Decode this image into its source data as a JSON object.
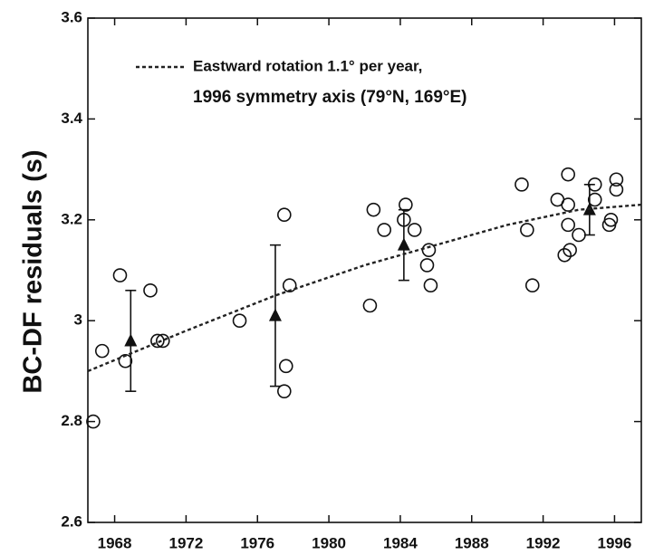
{
  "chart_data": {
    "type": "scatter",
    "y_label": "BC-DF residuals (s)",
    "annotation": "1996 symmetry axis (79°N, 169°E)",
    "xlim": [
      1966.5,
      1997.5
    ],
    "ylim": [
      2.6,
      3.6
    ],
    "xticks": [
      1968,
      1972,
      1976,
      1980,
      1984,
      1988,
      1992,
      1996
    ],
    "yticks": [
      2.6,
      2.8,
      3,
      3.2,
      3.4,
      3.6
    ],
    "series": [
      {
        "kind": "points",
        "marker": "circle",
        "color": "#111111",
        "x": [
          1966.8,
          1967.3,
          1968.3,
          1968.6,
          1970.0,
          1970.4,
          1970.7,
          1975.0,
          1977.5,
          1977.6,
          1977.5,
          1977.8,
          1982.3,
          1982.5,
          1983.1,
          1984.3,
          1984.2,
          1984.8,
          1985.6,
          1985.5,
          1985.7,
          1990.8,
          1991.1,
          1991.4,
          1992.8,
          1993.4,
          1993.4,
          1993.2,
          1993.5,
          1993.4,
          1994.0,
          1994.9,
          1994.9,
          1995.8,
          1995.7,
          1996.1,
          1996.1
        ],
        "values": [
          2.8,
          2.94,
          3.09,
          2.92,
          3.06,
          2.96,
          2.96,
          3.0,
          3.21,
          2.91,
          2.86,
          3.07,
          3.03,
          3.22,
          3.18,
          3.23,
          3.2,
          3.18,
          3.14,
          3.11,
          3.07,
          3.27,
          3.18,
          3.07,
          3.24,
          3.29,
          3.23,
          3.13,
          3.14,
          3.19,
          3.17,
          3.27,
          3.24,
          3.2,
          3.19,
          3.28,
          3.26
        ]
      },
      {
        "kind": "means",
        "marker": "triangle",
        "color": "#111111",
        "x": [
          1968.9,
          1977.0,
          1984.2,
          1994.6
        ],
        "values": [
          2.96,
          3.01,
          3.15,
          3.22
        ],
        "errors": [
          0.1,
          0.14,
          0.07,
          0.05
        ]
      },
      {
        "kind": "line",
        "name": "Eastward rotation 1.1° per year,",
        "color": "#222222",
        "dashed": true,
        "x": [
          1966.5,
          1972,
          1977,
          1982,
          1986,
          1990,
          1994,
          1997.5
        ],
        "values": [
          2.9,
          2.98,
          3.05,
          3.11,
          3.15,
          3.19,
          3.22,
          3.23
        ]
      }
    ]
  }
}
